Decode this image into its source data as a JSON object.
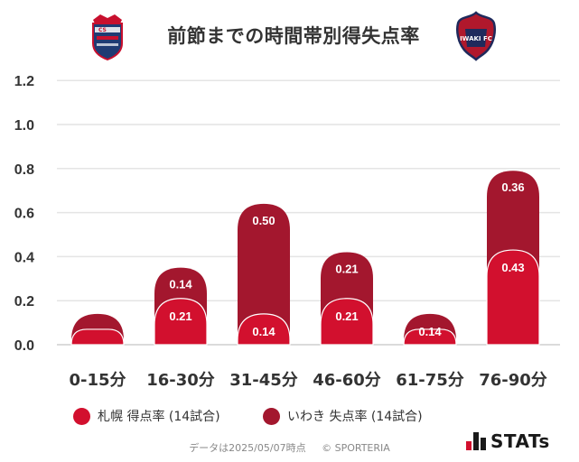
{
  "header": {
    "title": "前節までの時間帯別得失点率",
    "left_team_logo": "sapporo-emblem-icon",
    "right_team_logo": "iwaki-emblem-icon",
    "left_logo_text": "CS",
    "right_logo_text": "IWAKI FC"
  },
  "colors": {
    "sapporo": "#d2102e",
    "iwaki": "#a3172e",
    "grid": "#e4e4e4",
    "axis_text": "#333333"
  },
  "chart_data": {
    "type": "bar",
    "title": "前節までの時間帯別得失点率",
    "categories": [
      "0-15分",
      "16-30分",
      "31-45分",
      "46-60分",
      "61-75分",
      "76-90分"
    ],
    "series": [
      {
        "name": "札幌 得点率 (14試合)",
        "values": [
          0.0,
          0.21,
          0.14,
          0.21,
          0.0,
          0.43
        ],
        "labels": [
          "",
          "0.21",
          "0.14",
          "0.21",
          "",
          "0.43"
        ]
      },
      {
        "name": "いわき 失点率 (14試合)",
        "values": [
          0.14,
          0.14,
          0.5,
          0.21,
          0.14,
          0.36
        ],
        "labels": [
          "",
          "0.14",
          "0.50",
          "0.21",
          "0.14",
          "0.36"
        ]
      }
    ],
    "stacked": true,
    "ylim": [
      0,
      1.2
    ],
    "yticks": [
      "0.0",
      "0.2",
      "0.4",
      "0.6",
      "0.8",
      "1.0",
      "1.2"
    ],
    "xlabel": "",
    "ylabel": "",
    "grid": true
  },
  "legend": {
    "items": [
      {
        "label": "札幌 得点率 (14試合)"
      },
      {
        "label": "いわき 失点率 (14試合)"
      }
    ]
  },
  "footer": {
    "data_note": "データは2025/05/07時点",
    "copyright": "© SPORTERIA"
  },
  "brand": {
    "label": "STATs"
  }
}
